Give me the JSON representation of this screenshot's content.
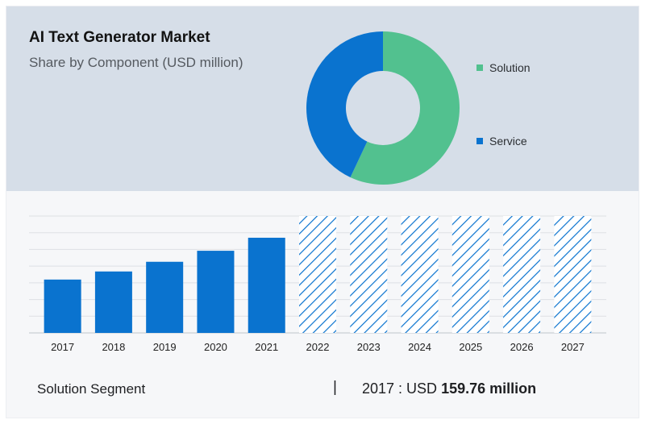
{
  "header": {
    "title": "AI Text Generator Market",
    "subtitle": "Share by Component (USD million)"
  },
  "legend": {
    "solution": "Solution",
    "service": "Service"
  },
  "colors": {
    "solution": "#52c18f",
    "service": "#0a73cf",
    "bar": "#0a73cf",
    "forecast_hatch": "#0a73cf",
    "top_panel": "#d6dee8"
  },
  "chart_data": [
    {
      "type": "pie",
      "style": "donut",
      "title": "AI Text Generator Market",
      "subtitle": "Share by Component (USD million)",
      "labels": [
        "Solution",
        "Service"
      ],
      "values": [
        57,
        43
      ],
      "unit": "percent (estimated share)"
    },
    {
      "type": "bar",
      "categories": [
        "2017",
        "2018",
        "2019",
        "2020",
        "2021",
        "2022",
        "2023",
        "2024",
        "2025",
        "2026",
        "2027"
      ],
      "values": [
        159.76,
        184,
        213,
        246,
        285,
        null,
        null,
        null,
        null,
        null,
        null
      ],
      "forecast_categories": [
        "2022",
        "2023",
        "2024",
        "2025",
        "2026",
        "2027"
      ],
      "forecast_display_value": 350,
      "ylim": [
        0,
        350
      ],
      "grid": true,
      "xlabel": "",
      "ylabel": ""
    }
  ],
  "footer": {
    "segment": "Solution Segment",
    "divider": "|",
    "value_prefix": "2017 : USD",
    "value_amount": "159.76 million"
  }
}
